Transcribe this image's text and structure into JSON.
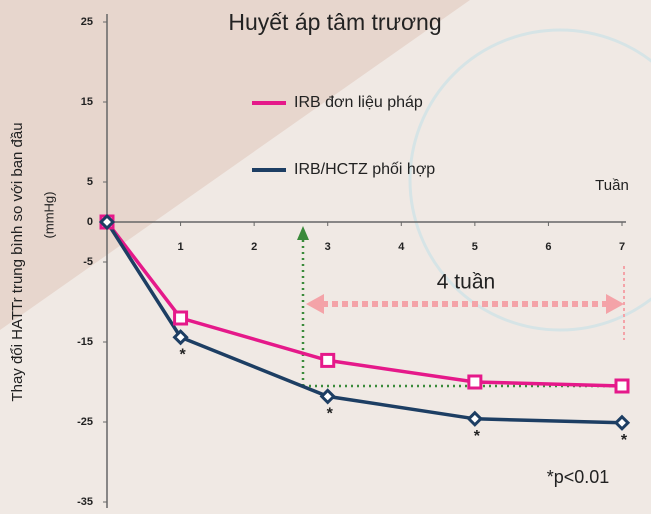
{
  "chart_data": {
    "type": "line",
    "title": "Huyết áp tâm trương",
    "y_label": "Thay đổi HATTr trung bình so với ban đầu",
    "y_unit": "(mmHg)",
    "x_label": "Tuần",
    "x": [
      0,
      1,
      3,
      5,
      7
    ],
    "series": [
      {
        "name": "IRB đơn liệu pháp",
        "color": "#e5198a",
        "marker": "square",
        "values": [
          0,
          -12,
          -17.3,
          -20,
          -20.5
        ]
      },
      {
        "name": "IRB/HCTZ phối hợp",
        "color": "#1d3e63",
        "marker": "diamond",
        "values": [
          0,
          -14.4,
          -21.8,
          -24.6,
          -25.1
        ]
      }
    ],
    "xlim": [
      0,
      7
    ],
    "xticks": [
      1,
      2,
      3,
      4,
      5,
      6,
      7
    ],
    "ylim": [
      -35,
      25
    ],
    "yticks": [
      25,
      15,
      5,
      0,
      -5,
      -15,
      -25,
      -35
    ],
    "legend": "upper center",
    "annotations": {
      "significance": "*",
      "duration": "4 tuần",
      "note": "*p<0.01"
    }
  }
}
